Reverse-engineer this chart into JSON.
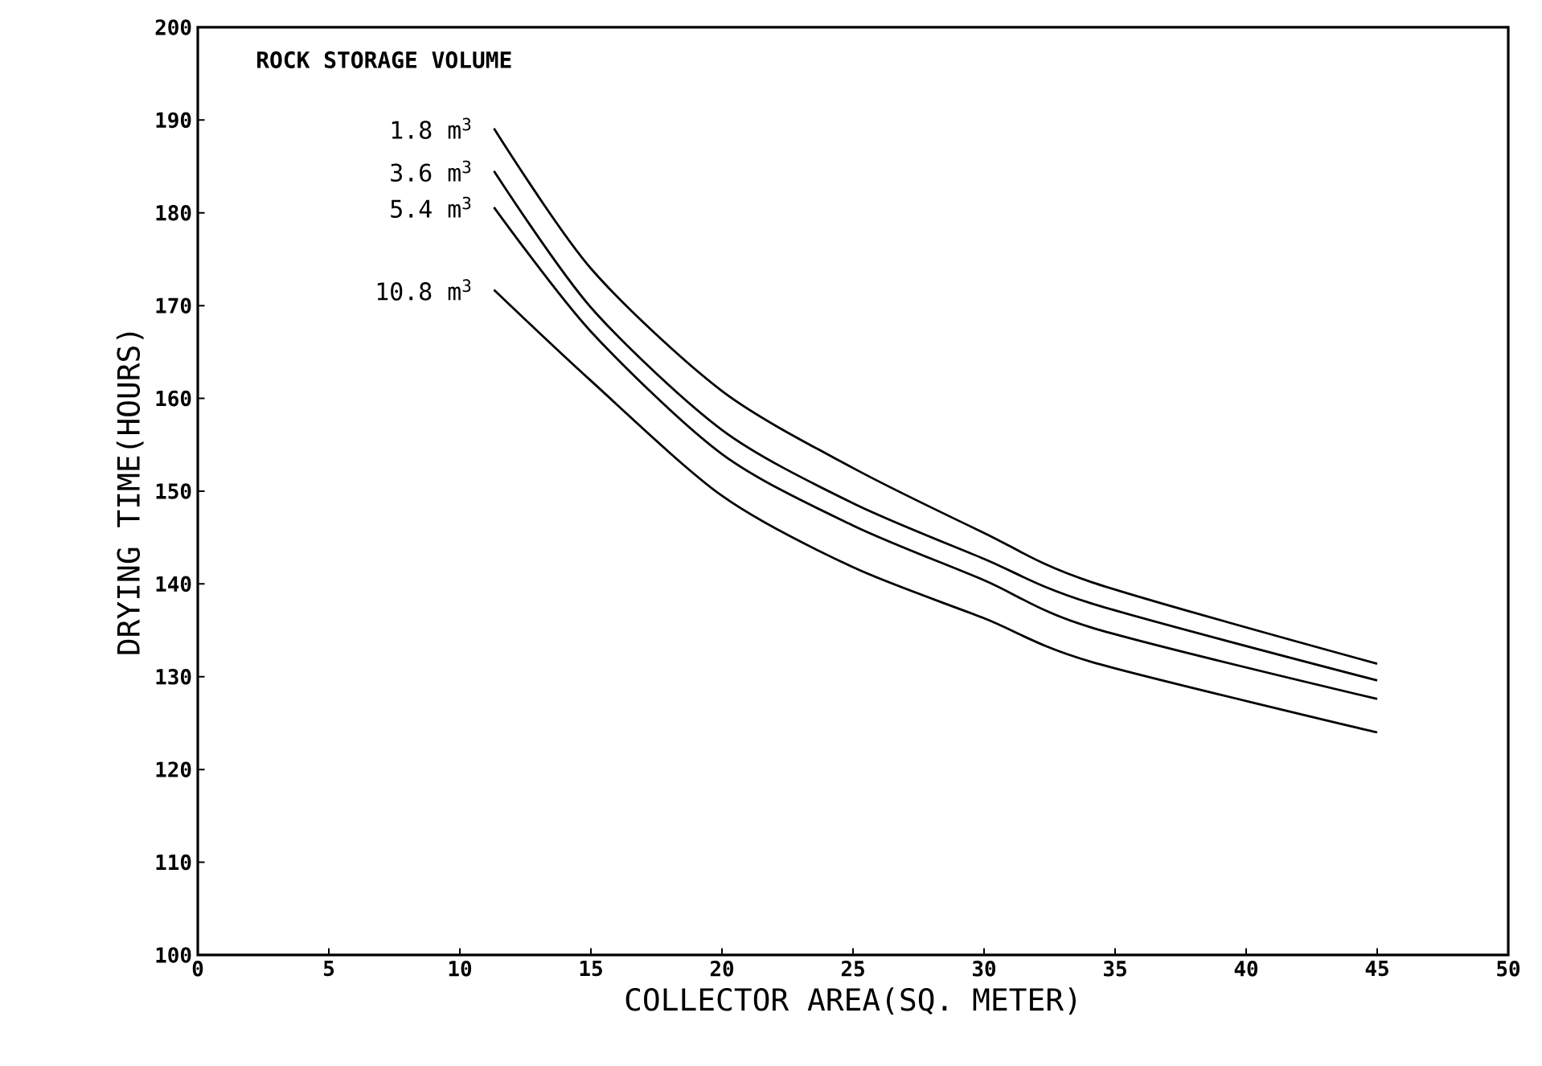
{
  "chart_data": {
    "type": "line",
    "xlabel": "COLLECTOR AREA(SQ. METER)",
    "ylabel": "DRYING TIME(HOURS)",
    "legend_title": "ROCK STORAGE VOLUME",
    "x": [
      11.3,
      15,
      20,
      25,
      30,
      34.1,
      45
    ],
    "series": [
      {
        "name": "1.8 m$^{3}$",
        "color": "#000000",
        "values": [
          189.1,
          174.0,
          160.8,
          152.5,
          145.5,
          140.2,
          131.4
        ]
      },
      {
        "name": "3.6 m$^{3}$",
        "color": "#000000",
        "values": [
          184.5,
          169.8,
          156.6,
          148.7,
          142.7,
          137.9,
          129.6
        ]
      },
      {
        "name": "5.4 m$^{3}$",
        "color": "#000000",
        "values": [
          180.6,
          167.2,
          154.0,
          146.3,
          140.4,
          135.3,
          127.6
        ]
      },
      {
        "name": "10.8 m$^{3}$",
        "color": "#000000",
        "values": [
          171.7,
          161.9,
          149.5,
          141.8,
          136.3,
          131.6,
          124.0
        ]
      }
    ],
    "xlim": [
      0,
      50
    ],
    "ylim": [
      100,
      200
    ],
    "xticks": [
      0,
      5,
      10,
      15,
      20,
      25,
      30,
      35,
      40,
      45,
      50
    ],
    "yticks": [
      100,
      110,
      120,
      130,
      140,
      150,
      160,
      170,
      180,
      190,
      200
    ],
    "grid": false,
    "legend": false,
    "marker": "none",
    "line_style": "solid"
  }
}
